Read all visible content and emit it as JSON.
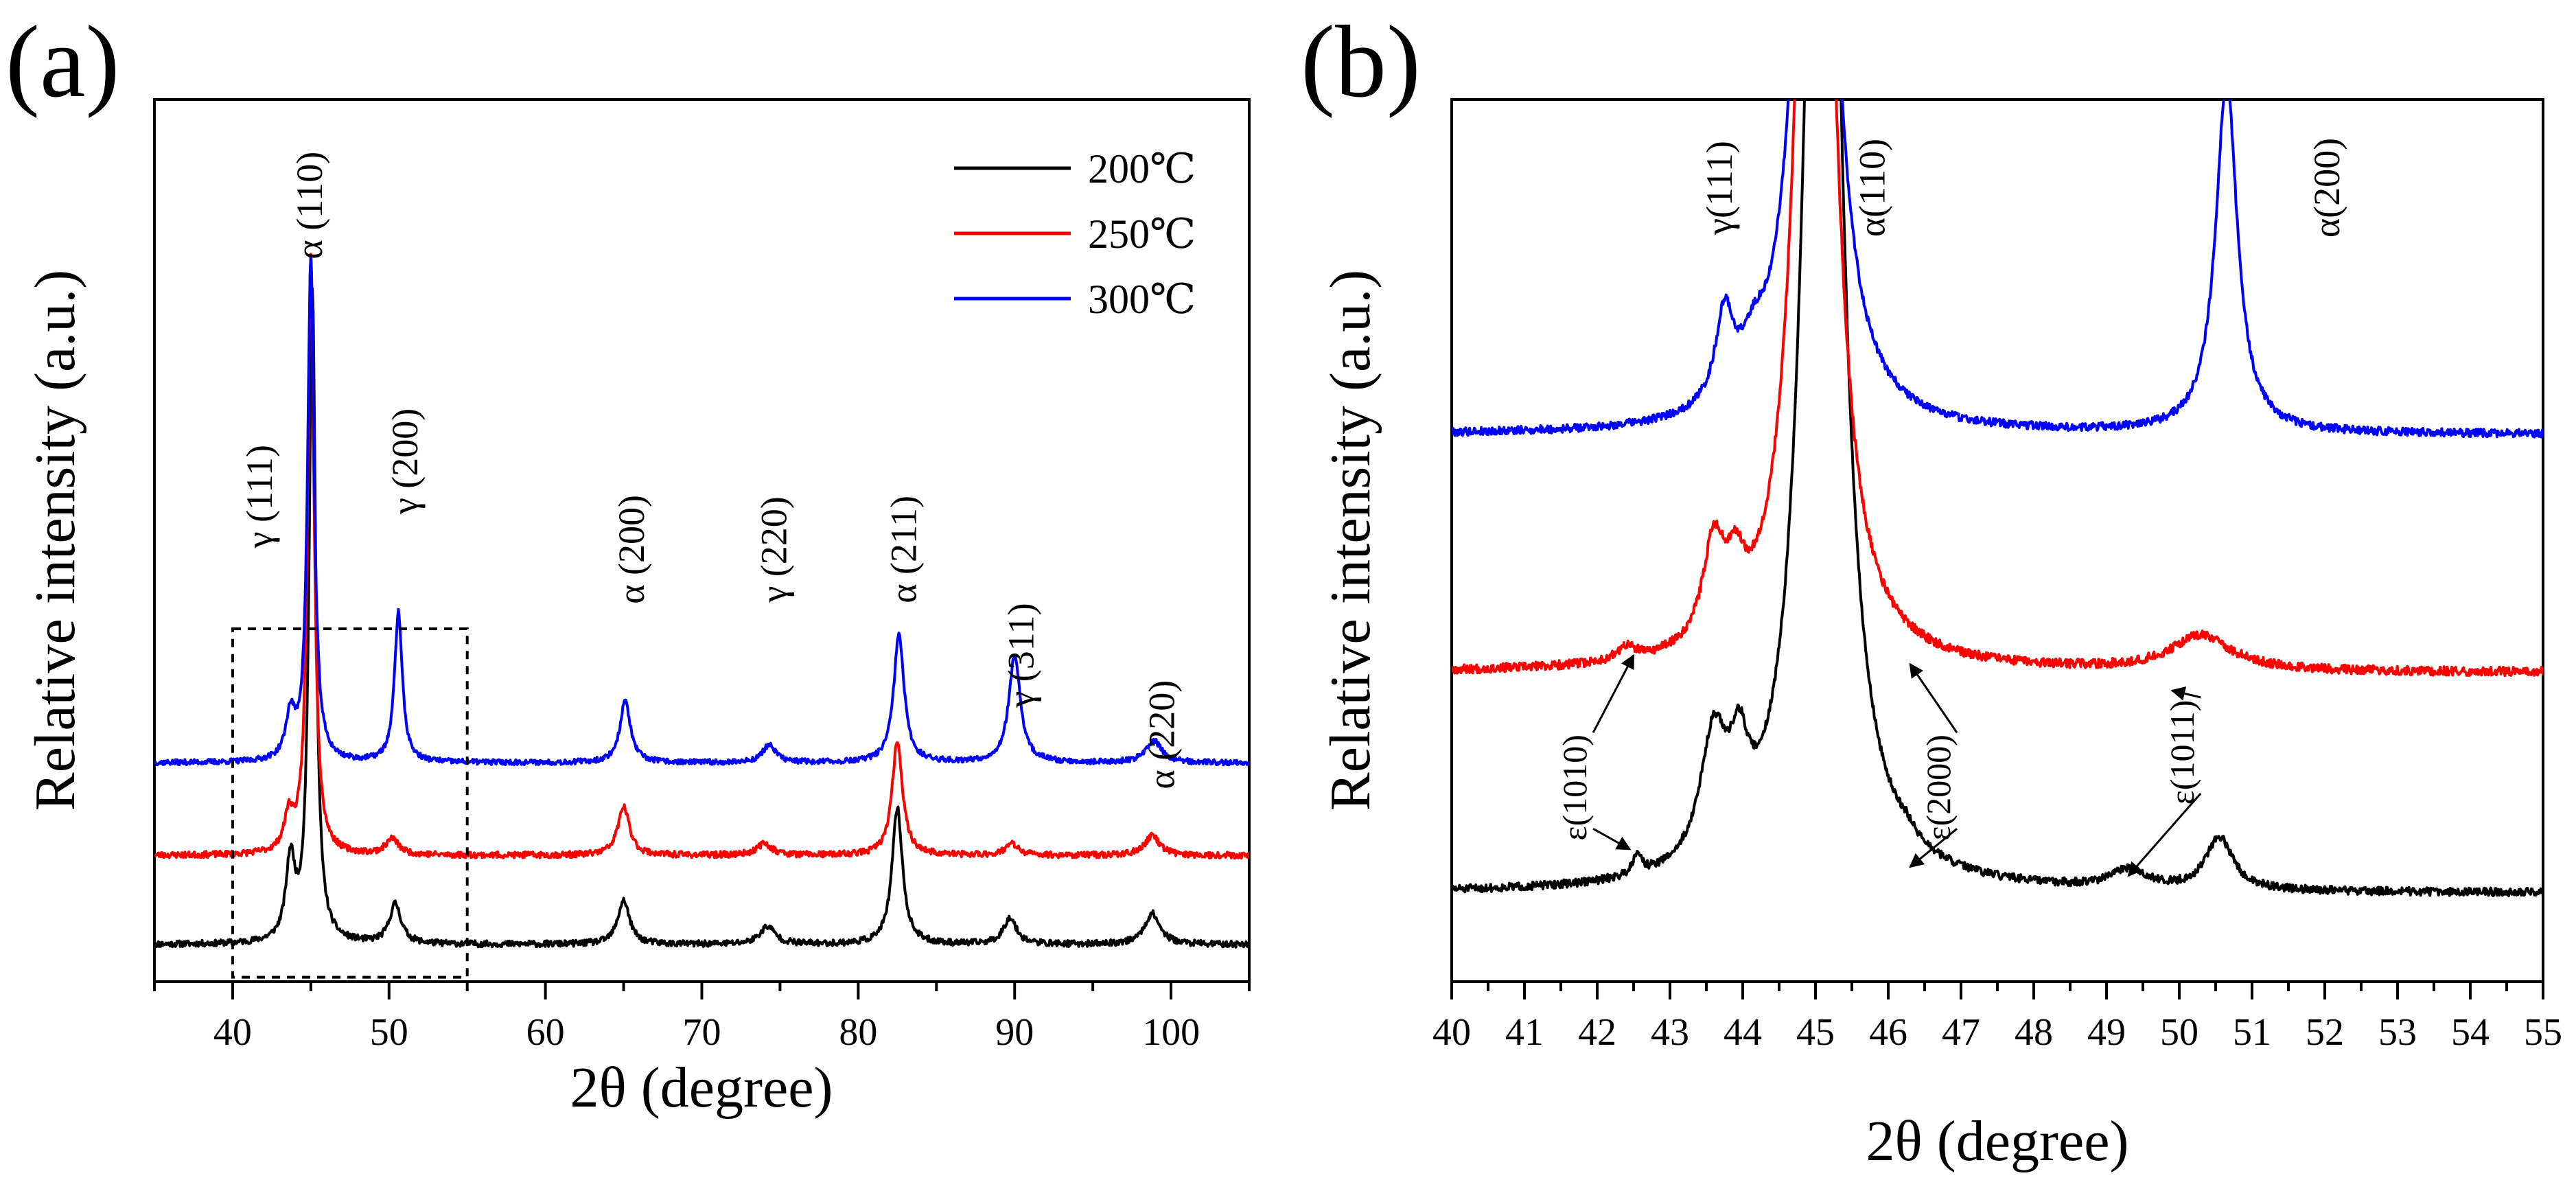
{
  "chart_data": [
    {
      "type": "line",
      "panel_label": "(a)",
      "xlabel": "2θ (degree)",
      "ylabel": "Relative intensity (a.u.)",
      "xlim": [
        35,
        105
      ],
      "ylim": [
        0,
        100
      ],
      "xticks": [
        "40",
        "50",
        "60",
        "70",
        "80",
        "90",
        "100"
      ],
      "y_ticks_shown": false,
      "legend": {
        "position": "top-right",
        "entries": [
          {
            "label": "200℃",
            "color": "#000000"
          },
          {
            "label": "250℃",
            "color": "#ff0000"
          },
          {
            "label": "300℃",
            "color": "#0000ff"
          }
        ]
      },
      "series": [
        {
          "name": "200℃",
          "color": "#000000",
          "baseline": 4.2,
          "noise": 0.35,
          "seed": 11,
          "peaks": [
            [
              43.7,
              9,
              0.35
            ],
            [
              45.1,
              74,
              0.25
            ],
            [
              50.4,
              4.5,
              0.45
            ],
            [
              65.0,
              5,
              0.45
            ],
            [
              74.2,
              2,
              0.6
            ],
            [
              82.5,
              15.5,
              0.4
            ],
            [
              89.7,
              3,
              0.5
            ],
            [
              98.8,
              3.5,
              0.6
            ]
          ]
        },
        {
          "name": "250℃",
          "color": "#ff0000",
          "baseline": 14.3,
          "noise": 0.35,
          "seed": 23,
          "peaks": [
            [
              43.6,
              4,
              0.35
            ],
            [
              45.0,
              68,
              0.25
            ],
            [
              50.2,
              1.8,
              0.5
            ],
            [
              65.0,
              5.5,
              0.45
            ],
            [
              74.0,
              1.3,
              0.6
            ],
            [
              82.5,
              13,
              0.4
            ],
            [
              89.8,
              1.3,
              0.5
            ],
            [
              98.8,
              2.2,
              0.6
            ]
          ]
        },
        {
          "name": "300℃",
          "color": "#0000ff",
          "baseline": 24.8,
          "noise": 0.3,
          "seed": 37,
          "peaks": [
            [
              43.7,
              5,
              0.35
            ],
            [
              45.0,
              57,
              0.25
            ],
            [
              50.6,
              17,
              0.3
            ],
            [
              65.1,
              7,
              0.4
            ],
            [
              74.3,
              2,
              0.5
            ],
            [
              82.6,
              14.5,
              0.4
            ],
            [
              90.0,
              12,
              0.45
            ],
            [
              98.9,
              2.5,
              0.6
            ]
          ]
        }
      ],
      "peak_labels": [
        {
          "text": "γ (111)",
          "x": 42.5,
          "y": 55
        },
        {
          "text": "α (110)",
          "x": 45.7,
          "y": 88
        },
        {
          "text": "γ (200)",
          "x": 51.8,
          "y": 59
        },
        {
          "text": "α (200)",
          "x": 66.3,
          "y": 49
        },
        {
          "text": "γ (220)",
          "x": 75.4,
          "y": 49
        },
        {
          "text": "α (211)",
          "x": 83.7,
          "y": 49
        },
        {
          "text": "γ (311)",
          "x": 91.2,
          "y": 37
        },
        {
          "text": "α (220)",
          "x": 100.2,
          "y": 28
        }
      ],
      "zoom_box": {
        "x": [
          40,
          55
        ],
        "y": [
          0.5,
          40
        ]
      }
    },
    {
      "type": "line",
      "panel_label": "(b)",
      "xlabel": "2θ (degree)",
      "ylabel": "Relative intensity (a.u.)",
      "xlim": [
        40,
        55
      ],
      "ylim": [
        0,
        100
      ],
      "xticks": [
        "40",
        "41",
        "42",
        "43",
        "44",
        "45",
        "46",
        "47",
        "48",
        "49",
        "50",
        "51",
        "52",
        "53",
        "54",
        "55"
      ],
      "y_ticks_shown": false,
      "series": [
        {
          "name": "200℃",
          "color": "#000000",
          "baseline": 10,
          "noise": 0.45,
          "seed": 51,
          "peaks": [
            [
              42.55,
              2.5,
              0.07
            ],
            [
              43.6,
              14,
              0.22
            ],
            [
              43.95,
              9,
              0.15
            ],
            [
              45.1,
              180,
              0.25
            ],
            [
              46.25,
              1,
              0.15
            ],
            [
              49.3,
              2,
              0.3
            ],
            [
              50.55,
              6,
              0.22
            ]
          ]
        },
        {
          "name": "250℃",
          "color": "#ff0000",
          "baseline": 35,
          "noise": 0.5,
          "seed": 67,
          "peaks": [
            [
              42.4,
              1.5,
              0.15
            ],
            [
              43.6,
              11,
              0.18
            ],
            [
              43.9,
              6,
              0.15
            ],
            [
              45.0,
              150,
              0.25
            ],
            [
              50.3,
              4,
              0.5
            ]
          ]
        },
        {
          "name": "300℃",
          "color": "#0000ff",
          "baseline": 62,
          "noise": 0.45,
          "seed": 79,
          "peaks": [
            [
              43.75,
              10,
              0.15
            ],
            [
              44.15,
              4,
              0.2
            ],
            [
              45.0,
              120,
              0.25
            ],
            [
              50.65,
              40,
              0.18
            ]
          ]
        }
      ],
      "peak_labels": [
        {
          "text": "γ(111)",
          "x": 43.85,
          "y": 90
        },
        {
          "text": "α(110)",
          "x": 45.95,
          "y": 90
        },
        {
          "text": "α(200)",
          "x": 52.2,
          "y": 90
        }
      ],
      "annotations": [
        {
          "text": "ε(1010)",
          "x": 41.85,
          "y": 22,
          "arrows": [
            [
              42.45,
              15
            ],
            [
              42.5,
              37
            ]
          ]
        },
        {
          "text": "ε(2000)",
          "x": 46.85,
          "y": 22,
          "arrows": [
            [
              46.3,
              13
            ],
            [
              46.3,
              36
            ]
          ]
        },
        {
          "text": "ε(1011)",
          "x": 50.2,
          "y": 26,
          "arrows": [
            [
              49.3,
              12
            ],
            [
              49.9,
              33
            ]
          ]
        }
      ]
    }
  ]
}
